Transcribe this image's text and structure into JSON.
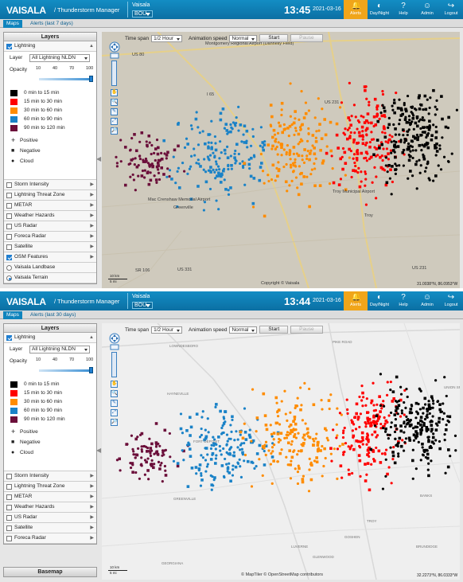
{
  "colors": {
    "accent": "#0f84bd",
    "alert": "#f0a51a",
    "c0_15": "#000000",
    "c15_30": "#ff0000",
    "c30_60": "#ff8c00",
    "c60_90": "#1a82c7",
    "c90_120": "#6b0f3a"
  },
  "app": {
    "brand": "VAISALA",
    "title": "/ Thunderstorm Manager",
    "org": "Vaisala",
    "site": "BOU"
  },
  "header_buttons": [
    {
      "label": "Alerts",
      "icon": "bell-icon"
    },
    {
      "label": "Day/Night",
      "icon": "day-night-icon"
    },
    {
      "label": "Help",
      "icon": "help-icon"
    },
    {
      "label": "Admin",
      "icon": "admin-icon"
    },
    {
      "label": "Logout",
      "icon": "logout-icon"
    }
  ],
  "panels": [
    {
      "clock": "13:45",
      "date": "2021-03-16",
      "tabs": [
        "Maps",
        "Alerts (last 7 days)"
      ],
      "coord": "31.0038°N, 86.0953°W",
      "attribution": "Copyright © Vaisala",
      "layers_after": [
        {
          "label": "Storm Intensity",
          "kind": "check",
          "on": false
        },
        {
          "label": "Lightning Threat Zone",
          "kind": "check",
          "on": false
        },
        {
          "label": "METAR",
          "kind": "check",
          "on": false
        },
        {
          "label": "Weather Hazards",
          "kind": "check",
          "on": false
        },
        {
          "label": "US Radar",
          "kind": "check",
          "on": false
        },
        {
          "label": "Foreca Radar",
          "kind": "check",
          "on": false
        },
        {
          "label": "Satellite",
          "kind": "check",
          "on": false
        },
        {
          "label": "OSM Features",
          "kind": "check",
          "on": true
        },
        {
          "label": "Vaisala Landbase",
          "kind": "radio",
          "on": false
        },
        {
          "label": "Vaisala Terrain",
          "kind": "radio",
          "on": true
        }
      ],
      "map_labels": [
        "US 80",
        "Montgomery Regional Airport (Dannelly Field)",
        "I 65",
        "US 231",
        "US 331",
        "Mac Crenshaw Memorial Airport",
        "Greenville",
        "Troy Municipal Airport",
        "Troy",
        "US 231",
        "SR 106"
      ]
    },
    {
      "clock": "13:44",
      "date": "2021-03-16",
      "tabs": [
        "Maps",
        "Alerts (last 30 days)"
      ],
      "coord": "32.2273°N, 86.0333°W",
      "attribution": "© MapTiler © OpenStreetMap contributors",
      "bottom": "Basemap",
      "layers_after": [
        {
          "label": "Storm Intensity",
          "kind": "check",
          "on": false
        },
        {
          "label": "Lightning Threat Zone",
          "kind": "check",
          "on": false
        },
        {
          "label": "METAR",
          "kind": "check",
          "on": false
        },
        {
          "label": "Weather Hazards",
          "kind": "check",
          "on": false
        },
        {
          "label": "US Radar",
          "kind": "check",
          "on": false
        },
        {
          "label": "Satellite",
          "kind": "check",
          "on": false
        },
        {
          "label": "Foreca Radar",
          "kind": "check",
          "on": false
        }
      ],
      "map_labels": [
        "LOWNDESBORO",
        "PIKE ROAD",
        "HAYNEVILLE",
        "FORT DEPOSIT",
        "GREENVILLE",
        "TROY",
        "BRUNDIDGE",
        "GOSHEN",
        "LUVERNE",
        "GLENWOOD",
        "UNION SP",
        "BANKS",
        "GEORGIANA"
      ]
    }
  ],
  "sidebar": {
    "title": "Layers",
    "lightning_label": "Lightning",
    "layer_label": "Layer",
    "layer_value": "All Lightning NLDN",
    "opacity_label": "Opacity",
    "opacity_ticks": [
      "10",
      "40",
      "70",
      "100"
    ],
    "opacity_value": 100,
    "legend": [
      {
        "label": "0 min to 15 min",
        "color": "#000000"
      },
      {
        "label": "15 min to 30 min",
        "color": "#ff0000"
      },
      {
        "label": "30 min to 60 min",
        "color": "#ff8c00"
      },
      {
        "label": "60 min to 90 min",
        "color": "#1a82c7"
      },
      {
        "label": "90 min to 120 min",
        "color": "#6b0f3a"
      }
    ],
    "polarity": [
      {
        "label": "Positive",
        "symbol": "+"
      },
      {
        "label": "Negative",
        "symbol": "■"
      },
      {
        "label": "Cloud",
        "symbol": "●"
      }
    ]
  },
  "controls": {
    "time_span_label": "Time span",
    "time_span_value": "1/2 Hour",
    "anim_label": "Animation speed",
    "anim_value": "Normal",
    "start": "Start",
    "pause": "Pause"
  },
  "scale": {
    "km": "10 km",
    "mi": "5 mi"
  }
}
